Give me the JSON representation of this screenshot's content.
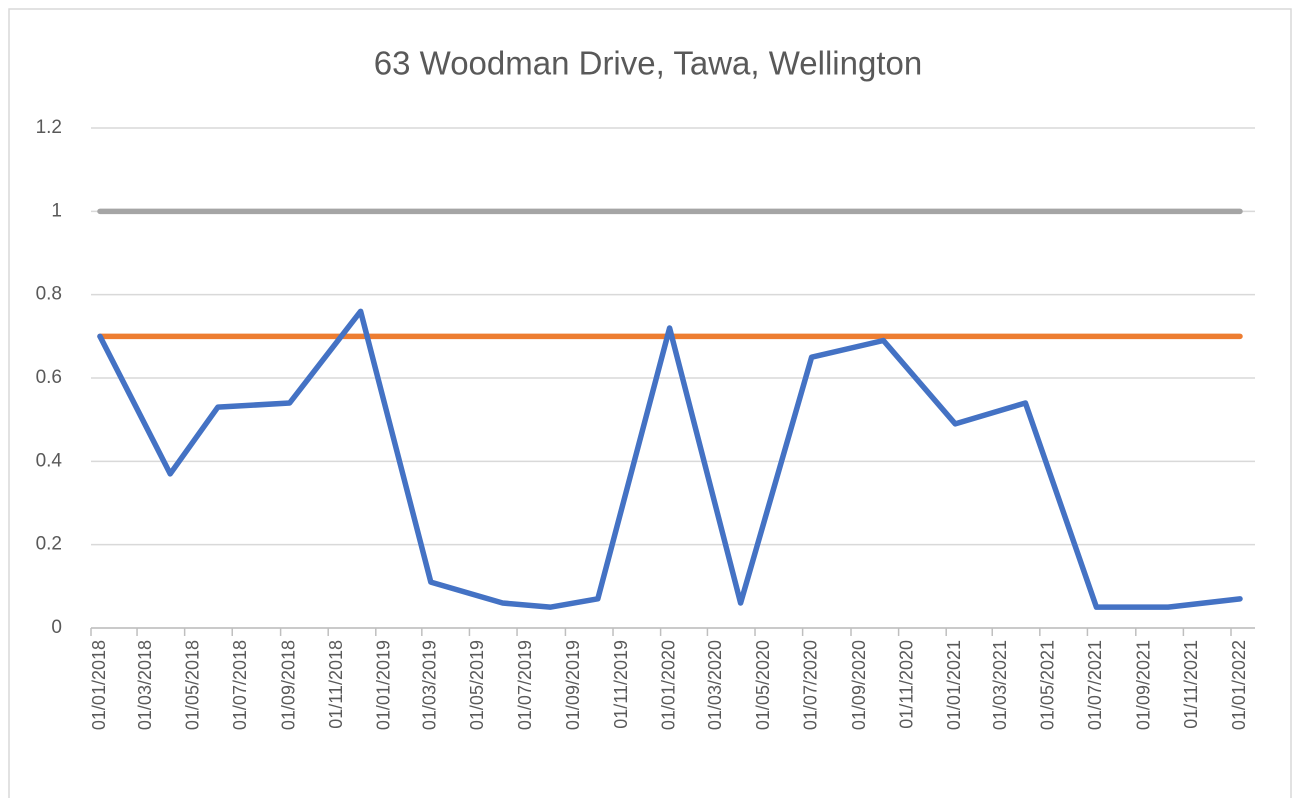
{
  "chart_data": {
    "type": "line",
    "title": "63 Woodman Drive, Tawa, Wellington",
    "x": [
      "01/01/2018",
      "01/04/2018",
      "01/06/2018",
      "01/09/2018",
      "01/12/2018",
      "01/03/2019",
      "01/06/2019",
      "01/08/2019",
      "01/10/2019",
      "01/01/2020",
      "01/04/2020",
      "01/07/2020",
      "01/10/2020",
      "01/01/2021",
      "01/04/2021",
      "01/07/2021",
      "01/10/2021",
      "01/01/2022"
    ],
    "series": [
      {
        "color": "#4472c4",
        "values": [
          0.7,
          0.37,
          0.53,
          0.54,
          0.76,
          0.11,
          0.06,
          0.05,
          0.07,
          0.72,
          0.06,
          0.65,
          0.69,
          0.49,
          0.54,
          0.05,
          0.05,
          0.07
        ]
      },
      {
        "color": "#a5a5a5",
        "values": [
          1,
          1,
          1,
          1,
          1,
          1,
          1,
          1,
          1,
          1,
          1,
          1,
          1,
          1,
          1,
          1,
          1,
          1
        ]
      },
      {
        "color": "#ed7d31",
        "values": [
          0.7,
          0.7,
          0.7,
          0.7,
          0.7,
          0.7,
          0.7,
          0.7,
          0.7,
          0.7,
          0.7,
          0.7,
          0.7,
          0.7,
          0.7,
          0.7,
          0.7,
          0.7
        ]
      }
    ],
    "xlim": [
      "01/01/2018",
      "01/01/2022"
    ],
    "xticks": [
      "01/01/2018",
      "01/03/2018",
      "01/05/2018",
      "01/07/2018",
      "01/09/2018",
      "01/11/2018",
      "01/01/2019",
      "01/03/2019",
      "01/05/2019",
      "01/07/2019",
      "01/09/2019",
      "01/11/2019",
      "01/01/2020",
      "01/03/2020",
      "01/05/2020",
      "01/07/2020",
      "01/09/2020",
      "01/11/2020",
      "01/01/2021",
      "01/03/2021",
      "01/05/2021",
      "01/07/2021",
      "01/09/2021",
      "01/11/2021",
      "01/01/2022"
    ],
    "ylim": [
      0,
      1.2
    ],
    "yticks": [
      0,
      0.2,
      0.4,
      0.6,
      0.8,
      1,
      1.2
    ],
    "grid": true
  }
}
